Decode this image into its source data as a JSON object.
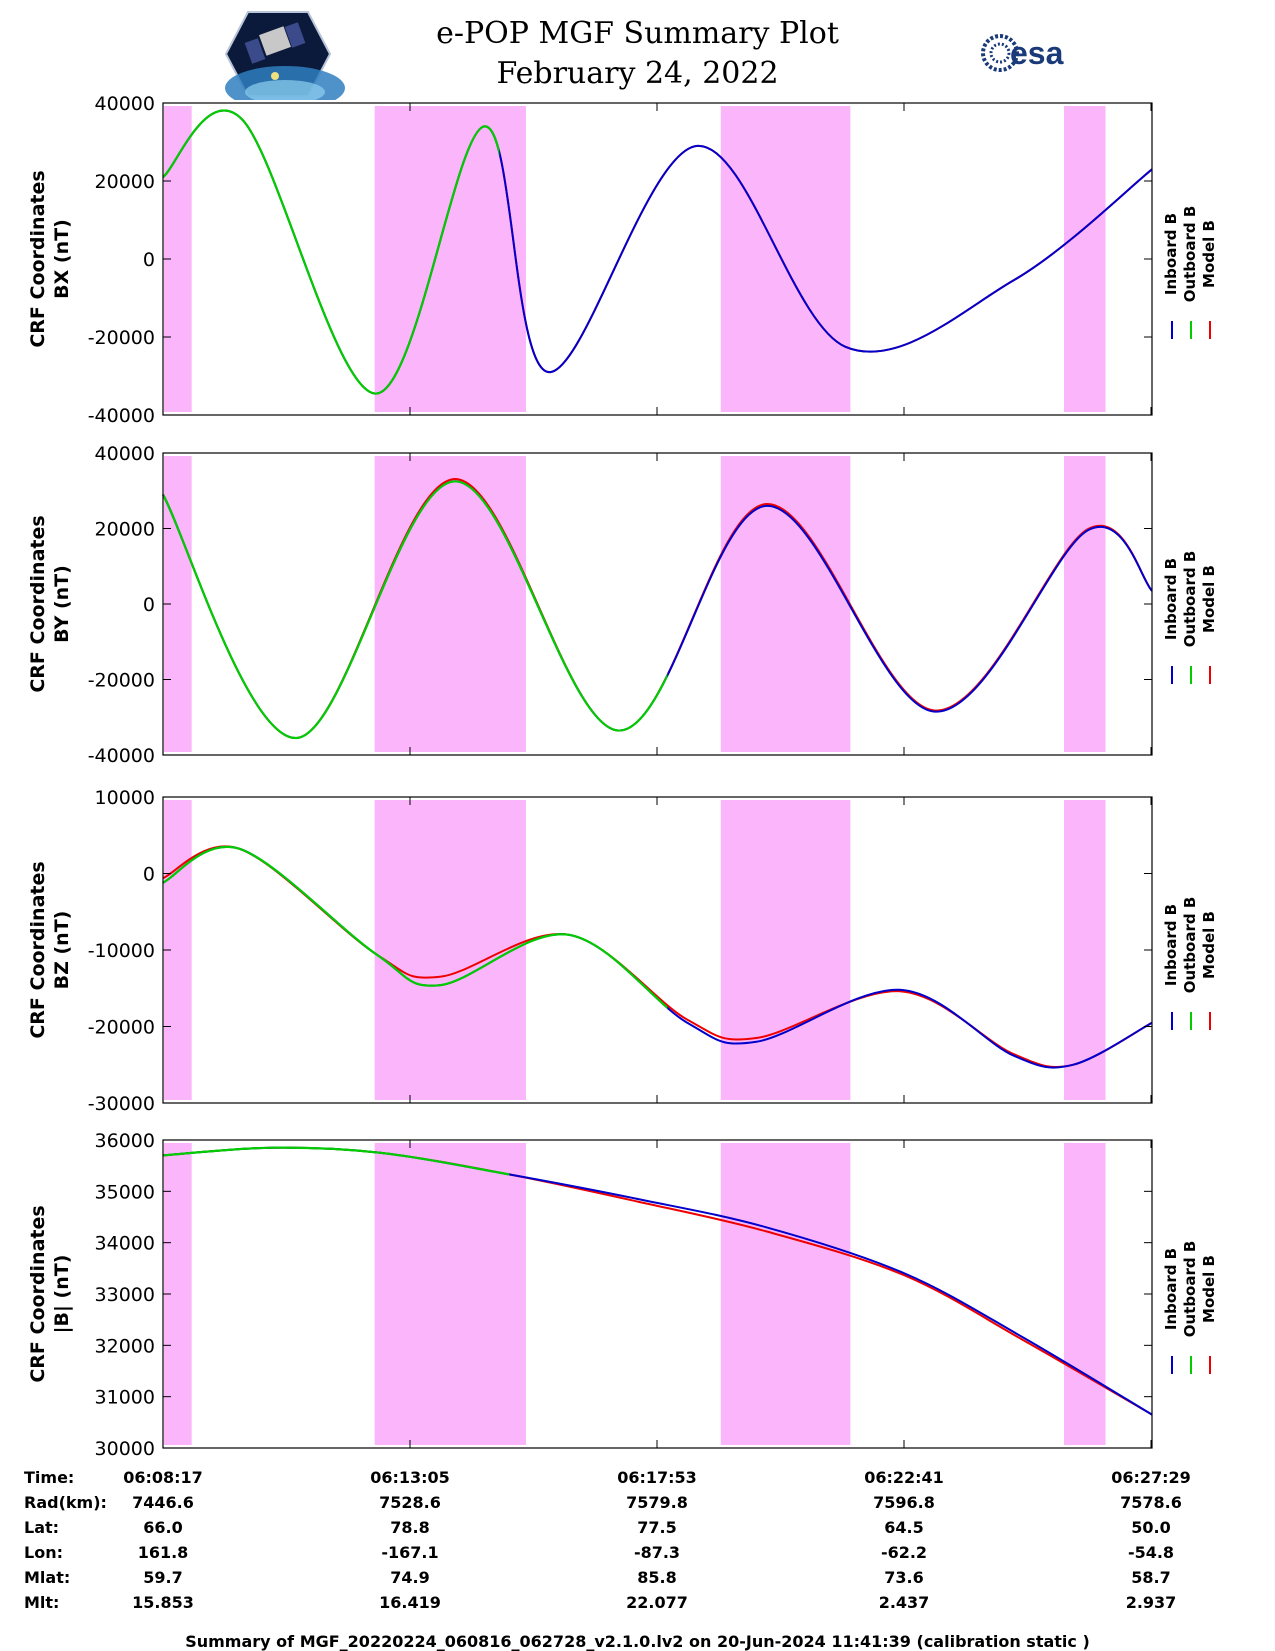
{
  "header": {
    "title": "e-POP MGF Summary Plot",
    "date": "February 24, 2022",
    "left_logo": "cassiope-mission-logo",
    "right_logo_text": "esa"
  },
  "colors": {
    "inboard": "#0000cc",
    "outboard": "#00cc00",
    "model": "#ee0000",
    "shade": "#fbb6fb"
  },
  "legend": [
    "Inboard B",
    "Outboard B",
    "Model B"
  ],
  "chart_data": [
    {
      "type": "line",
      "component": "BX",
      "ylabel": [
        "CRF Coordinates",
        "BX (nT)"
      ],
      "ylim": [
        -40000,
        40000
      ],
      "yticks": [
        40000,
        20000,
        0,
        -20000,
        -40000
      ],
      "knots_t": [
        0,
        0.08,
        0.215,
        0.325,
        0.39,
        0.54,
        0.69,
        0.86,
        1.0
      ],
      "knots_v": [
        21000,
        35800,
        -34500,
        34000,
        -29000,
        29000,
        -22500,
        -5500,
        23000
      ],
      "model_offset": [
        0,
        0,
        0,
        0,
        0,
        0,
        0,
        0,
        0
      ],
      "outboard_end": 0.34
    },
    {
      "type": "line",
      "component": "BY",
      "ylabel": [
        "CRF Coordinates",
        "BY (nT)"
      ],
      "ylim": [
        -40000,
        40000
      ],
      "yticks": [
        40000,
        20000,
        0,
        -20000,
        -40000
      ],
      "knots_t": [
        0,
        0.135,
        0.295,
        0.46,
        0.61,
        0.78,
        0.935,
        1.0
      ],
      "knots_v": [
        29000,
        -35500,
        32500,
        -33500,
        26000,
        -28500,
        19500,
        3500
      ],
      "model_offset": [
        0,
        0,
        600,
        0,
        500,
        300,
        300,
        0
      ],
      "outboard_end": 0.51
    },
    {
      "type": "line",
      "component": "BZ",
      "ylabel": [
        "CRF Coordinates",
        "BZ (nT)"
      ],
      "ylim": [
        -30000,
        10000
      ],
      "yticks": [
        10000,
        0,
        -10000,
        -20000,
        -30000
      ],
      "knots_t": [
        0,
        0.078,
        0.215,
        0.28,
        0.41,
        0.53,
        0.6,
        0.745,
        0.86,
        0.92,
        1.0
      ],
      "knots_v": [
        -1200,
        3200,
        -10500,
        -14600,
        -8000,
        -19500,
        -22000,
        -15200,
        -23800,
        -25000,
        -19500
      ],
      "model_offset": [
        600,
        0,
        0,
        1100,
        0,
        400,
        500,
        -200,
        200,
        0,
        0
      ],
      "outboard_end": 0.51
    },
    {
      "type": "line",
      "component": "|B|",
      "ylabel": [
        "CRF Coordinates",
        "|B| (nT)"
      ],
      "ylim": [
        30000,
        36000
      ],
      "yticks": [
        36000,
        35000,
        34000,
        33000,
        32000,
        31000,
        30000
      ],
      "knots_t": [
        0,
        0.11,
        0.22,
        0.35,
        0.48,
        0.61,
        0.75,
        0.87,
        1.0
      ],
      "knots_v": [
        35700,
        35850,
        35750,
        35330,
        34850,
        34300,
        33400,
        32150,
        30650
      ],
      "model_offset": [
        0,
        0,
        0,
        0,
        -50,
        -80,
        -40,
        -50,
        0
      ],
      "outboard_end": 0.35
    }
  ],
  "shaded_intervals": [
    [
      0,
      0.028
    ],
    [
      0.213,
      0.366
    ],
    [
      0.563,
      0.694
    ],
    [
      0.91,
      0.952
    ]
  ],
  "xticks": [
    "06:08:17",
    "06:13:05",
    "06:17:53",
    "06:22:41",
    "06:27:29"
  ],
  "ephemeris": {
    "labels": [
      "Time:",
      "Rad(km):",
      "Lat:",
      "Lon:",
      "Mlat:",
      "Mlt:"
    ],
    "rows": [
      [
        "06:08:17",
        "06:13:05",
        "06:17:53",
        "06:22:41",
        "06:27:29"
      ],
      [
        "7446.6",
        "7528.6",
        "7579.8",
        "7596.8",
        "7578.6"
      ],
      [
        "66.0",
        "78.8",
        "77.5",
        "64.5",
        "50.0"
      ],
      [
        "161.8",
        "-167.1",
        "-87.3",
        "-62.2",
        "-54.8"
      ],
      [
        "59.7",
        "74.9",
        "85.8",
        "73.6",
        "58.7"
      ],
      [
        "15.853",
        "16.419",
        "22.077",
        "2.437",
        "2.937"
      ]
    ]
  },
  "footer": "Summary of MGF_20220224_060816_062728_v2.1.0.lv2 on 20-Jun-2024 11:41:39 (calibration static )"
}
